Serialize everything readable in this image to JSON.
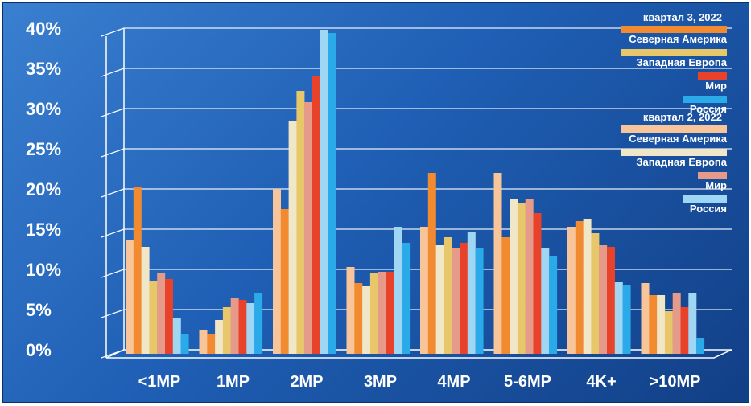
{
  "chart_data": {
    "type": "bar",
    "categories": [
      "<1MP",
      "1MP",
      "2MP",
      "3MP",
      "4MP",
      "5-6MP",
      "4K+",
      ">10MP"
    ],
    "yticks": [
      "0%",
      "5%",
      "10%",
      "15%",
      "20%",
      "25%",
      "30%",
      "35%",
      "40%"
    ],
    "ylim": [
      0,
      40
    ],
    "grid": true,
    "legend_position": "top-right",
    "legend_groups": [
      {
        "title": "квартал 3, 2022",
        "entries": [
          0,
          1,
          2,
          3
        ]
      },
      {
        "title": "квартал 2, 2022",
        "entries": [
          4,
          5,
          6,
          7
        ]
      }
    ],
    "series": [
      {
        "name": "Северная Америка",
        "color": "#f28a30",
        "values": [
          20.3,
          2.0,
          17.5,
          8.3,
          22.0,
          14.0,
          16.0,
          6.8
        ]
      },
      {
        "name": "Западная Европа",
        "color": "#e8c76b",
        "values": [
          8.5,
          5.3,
          32.2,
          9.6,
          14.0,
          18.2,
          14.5,
          4.8
        ]
      },
      {
        "name": "Мир",
        "color": "#e8432a",
        "values": [
          8.8,
          6.2,
          34.0,
          9.7,
          13.3,
          17.0,
          12.8,
          5.3
        ]
      },
      {
        "name": "Россия",
        "color": "#2aaae8",
        "values": [
          2.0,
          7.1,
          39.4,
          13.3,
          12.7,
          11.6,
          8.1,
          1.4
        ]
      },
      {
        "name": "Северная Америка",
        "color": "#f8c59a",
        "values": [
          13.7,
          2.4,
          20.0,
          10.3,
          15.3,
          22.0,
          15.3,
          8.3
        ]
      },
      {
        "name": "Западная Европа",
        "color": "#f0e6c8",
        "values": [
          12.8,
          3.7,
          28.5,
          7.9,
          13.0,
          18.7,
          16.2,
          6.8
        ]
      },
      {
        "name": "Мир",
        "color": "#e59a8a",
        "values": [
          9.5,
          6.4,
          30.8,
          9.7,
          12.7,
          18.7,
          13.0,
          7.0
        ]
      },
      {
        "name": "Россия",
        "color": "#9fd6f3",
        "values": [
          3.9,
          5.8,
          39.8,
          15.3,
          14.7,
          12.6,
          8.4,
          7.0
        ]
      }
    ]
  }
}
